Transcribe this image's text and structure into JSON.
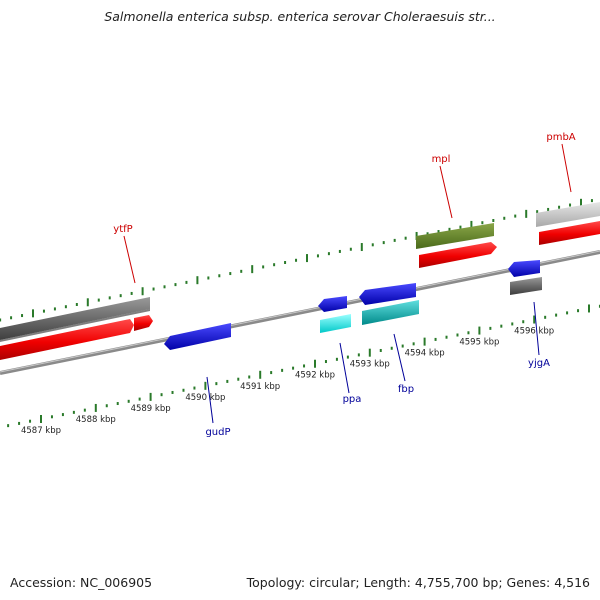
{
  "title": "Salmonella enterica subsp. enterica serovar Choleraesuis str...",
  "footer": {
    "accession": "Accession: NC_006905",
    "topology": "Topology: circular; Length: 4,755,700 bp; Genes: 4,516"
  },
  "colors": {
    "top_strand_label": "#cc0000",
    "bottom_strand_label": "#000099",
    "ticks": "#2a7a2a",
    "backbone": "#8a8a8a"
  },
  "kbp_ticks": [
    {
      "label": "4587 kbp"
    },
    {
      "label": "4588 kbp"
    },
    {
      "label": "4589 kbp"
    },
    {
      "label": "4590 kbp"
    },
    {
      "label": "4591 kbp"
    },
    {
      "label": "4592 kbp"
    },
    {
      "label": "4593 kbp"
    },
    {
      "label": "4594 kbp"
    },
    {
      "label": "4595 kbp"
    },
    {
      "label": "4596 kbp"
    }
  ],
  "gene_labels": {
    "ytfP": "ytfP",
    "mpl": "mpl",
    "pmbA": "pmbA",
    "gudP": "gudP",
    "ppa": "ppa",
    "fbp": "fbp",
    "yjgA": "yjgA"
  }
}
